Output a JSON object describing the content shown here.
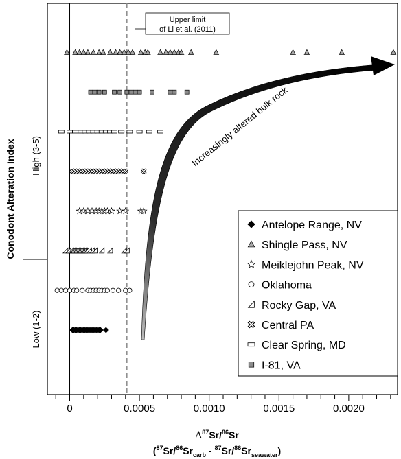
{
  "chart_data": {
    "type": "scatter",
    "x_axis": {
      "label_prefix": "Δ",
      "label_main": "87Sr/86Sr",
      "label_sub_line": "(87Sr/86Sr carb - 87Sr/86Sr seawater)",
      "label_parts": {
        "sup87": "87",
        "sr": "Sr/",
        "sup86": "86",
        "sr2": "Sr",
        "open": "(",
        "dash": " - ",
        "close": ")",
        "carb": "carb",
        "seawater": "seawater"
      },
      "xlim": [
        -0.00016,
        0.00235
      ],
      "tick_labels": [
        "0",
        "0.0005",
        "0.0010",
        "0.0015",
        "0.0020"
      ],
      "tick_values": [
        0,
        0.0005,
        0.001,
        0.0015,
        0.002
      ],
      "minor_step": 0.0001
    },
    "y_axis": {
      "label": "Conodont Alteration Index",
      "groups": [
        "Low (1-2)",
        "High (3-5)"
      ]
    },
    "reference_line": {
      "x": 0.00041,
      "label_line1": "Upper limit",
      "label_line2": "of Li et al. (2011)",
      "style": "dashed"
    },
    "zero_line": {
      "x": 0
    },
    "arrow_label": "Increasingly altered bulk rock",
    "series": [
      {
        "name": "Antelope Range, NV",
        "marker": "diamond",
        "row": 1,
        "x": [
          2e-05,
          3e-05,
          4e-05,
          5e-05,
          6e-05,
          7e-05,
          8e-05,
          9e-05,
          0.0001,
          0.00011,
          0.00012,
          0.00013,
          0.00014,
          0.00015,
          0.00016,
          0.00017,
          0.00018,
          0.00019,
          0.0002,
          0.00021,
          0.00022,
          0.00026
        ]
      },
      {
        "name": "Oklahoma",
        "marker": "circle",
        "row": 2,
        "x": [
          -9e-05,
          -6e-05,
          -3e-05,
          0.0,
          3e-05,
          5e-05,
          9e-05,
          0.00013,
          0.00015,
          0.00017,
          0.00019,
          0.00021,
          0.00023,
          0.00025,
          0.00027,
          0.00031,
          0.00035,
          0.0004,
          0.00043
        ]
      },
      {
        "name": "Rocky Gap, VA",
        "marker": "tri-right",
        "row": 3,
        "x": [
          -3e-05,
          -1e-05,
          1e-05,
          2e-05,
          3e-05,
          4e-05,
          5e-05,
          6e-05,
          7e-05,
          8e-05,
          9e-05,
          0.0001,
          0.00011,
          0.00012,
          0.00014,
          0.00016,
          0.00018,
          0.00023,
          0.00029,
          0.00039,
          0.00041
        ]
      },
      {
        "name": "Meiklejohn Peak, NV",
        "marker": "star",
        "row": 4,
        "x": [
          7e-05,
          0.0001,
          0.00013,
          0.00016,
          0.00019,
          0.00021,
          0.00023,
          0.00025,
          0.00027,
          0.0003,
          0.00036,
          0.0004,
          0.00051,
          0.00053
        ]
      },
      {
        "name": "Central PA",
        "marker": "x",
        "row": 5,
        "x": [
          2e-05,
          4e-05,
          6e-05,
          8e-05,
          0.0001,
          0.00012,
          0.00014,
          0.00016,
          0.00018,
          0.0002,
          0.00022,
          0.00024,
          0.00026,
          0.00028,
          0.0003,
          0.00032,
          0.00034,
          0.00036,
          0.00038,
          0.0004,
          0.00053
        ]
      },
      {
        "name": "Clear Spring, MD",
        "marker": "rect",
        "row": 6,
        "x": [
          -6e-05,
          0.0,
          4e-05,
          8e-05,
          0.00011,
          0.00014,
          0.00017,
          0.0002,
          0.00023,
          0.00026,
          0.00029,
          0.00032,
          0.00037,
          0.00043,
          0.0005,
          0.00057,
          0.00065
        ]
      },
      {
        "name": "I-81, VA",
        "marker": "square",
        "row": 7,
        "x": [
          0.00015,
          0.00018,
          0.00021,
          0.00025,
          0.00032,
          0.00036,
          0.00041,
          0.00044,
          0.00047,
          0.0005,
          0.00059,
          0.00072,
          0.00075,
          0.00084
        ]
      },
      {
        "name": "Shingle Pass, NV",
        "marker": "triangle",
        "row": 8,
        "x": [
          -2e-05,
          4e-05,
          7e-05,
          0.0001,
          0.00013,
          0.00017,
          0.00021,
          0.00024,
          0.00029,
          0.00033,
          0.00036,
          0.00039,
          0.00042,
          0.00045,
          0.00051,
          0.00054,
          0.00056,
          0.00065,
          0.00069,
          0.00072,
          0.00075,
          0.00078,
          0.0008,
          0.00087,
          0.00105,
          0.0016,
          0.0017,
          0.00195,
          0.00232
        ]
      }
    ],
    "legend": {
      "position": "bottom-right",
      "items": [
        {
          "label": "Antelope Range, NV",
          "marker": "diamond"
        },
        {
          "label": "Shingle Pass, NV",
          "marker": "triangle"
        },
        {
          "label": "Meiklejohn Peak, NV",
          "marker": "star"
        },
        {
          "label": "Oklahoma",
          "marker": "circle"
        },
        {
          "label": "Rocky Gap, VA",
          "marker": "tri-right"
        },
        {
          "label": "Central PA",
          "marker": "x"
        },
        {
          "label": "Clear Spring, MD",
          "marker": "rect"
        },
        {
          "label": "I-81, VA",
          "marker": "square"
        }
      ]
    }
  }
}
